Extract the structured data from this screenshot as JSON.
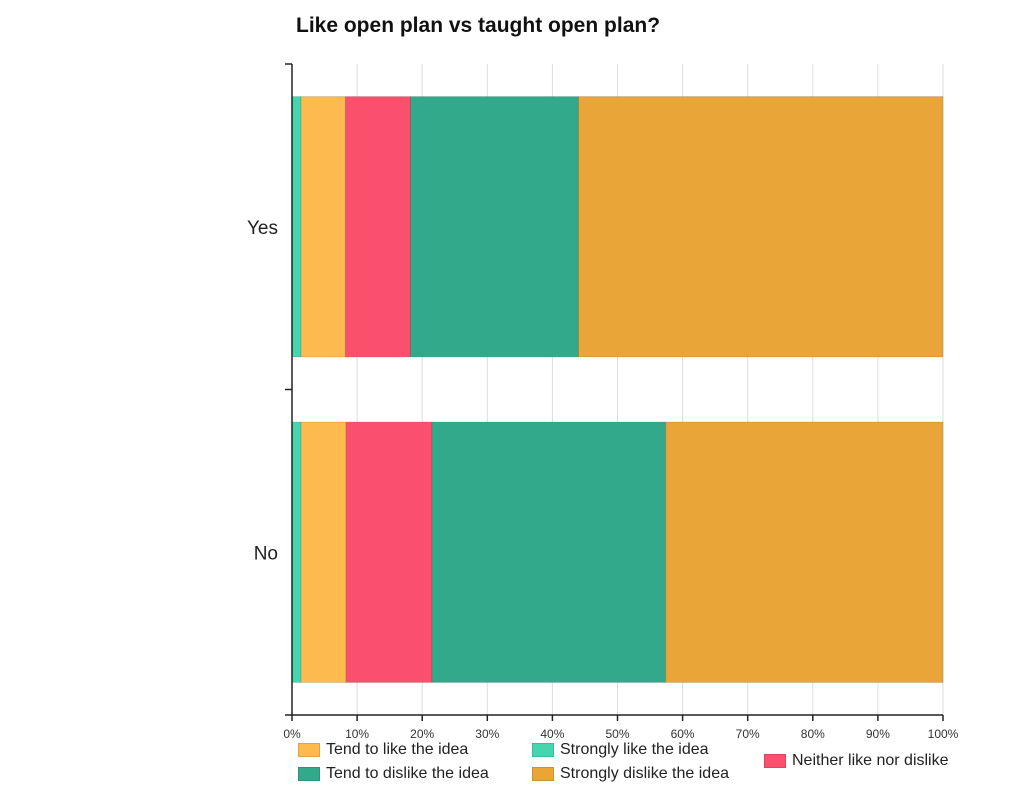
{
  "chart_data": {
    "type": "bar",
    "orientation": "horizontal",
    "stacked": true,
    "normalized": true,
    "title": "Like open plan vs taught open plan?",
    "xlabel": "",
    "ylabel": "",
    "xlim": [
      0,
      100
    ],
    "x_ticks": [
      "0%",
      "10%",
      "20%",
      "30%",
      "40%",
      "50%",
      "60%",
      "70%",
      "80%",
      "90%",
      "100%"
    ],
    "grid": true,
    "legend_position": "bottom",
    "categories": [
      "Yes",
      "No"
    ],
    "series": [
      {
        "name": "Strongly like the idea",
        "color": "#45d6b0",
        "values": [
          1.4,
          1.4
        ]
      },
      {
        "name": "Tend to like the idea",
        "color": "#fdbb4f",
        "values": [
          6.8,
          6.9
        ]
      },
      {
        "name": "Neither like nor dislike",
        "color": "#fb4f6e",
        "values": [
          10.0,
          13.2
        ]
      },
      {
        "name": "Tend to dislike the idea",
        "color": "#33a98b",
        "values": [
          25.8,
          35.9
        ]
      },
      {
        "name": "Strongly dislike the idea",
        "color": "#e9a537",
        "values": [
          56.0,
          42.6
        ]
      }
    ],
    "legend": [
      {
        "label": "Tend to like the idea",
        "color": "#fdbb4f"
      },
      {
        "label": "Tend to dislike the idea",
        "color": "#33a98b"
      },
      {
        "label": "Strongly like the idea",
        "color": "#45d6b0"
      },
      {
        "label": "Strongly dislike the idea",
        "color": "#e9a537"
      },
      {
        "label": "Neither like nor dislike",
        "color": "#fb4f6e"
      }
    ]
  }
}
